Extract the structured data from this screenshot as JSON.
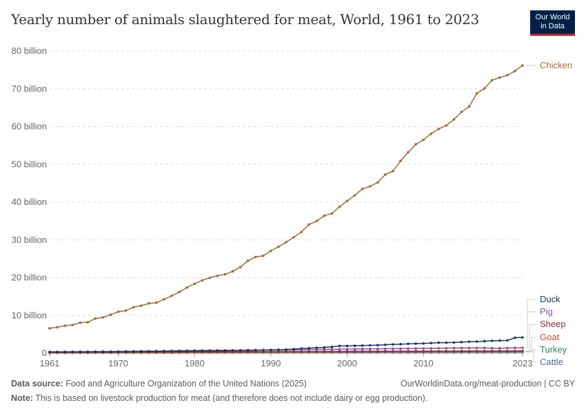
{
  "title": "Yearly number of animals slaughtered for meat, World, 1961 to 2023",
  "logo": {
    "line1": "Our World",
    "line2": "in Data"
  },
  "footer": {
    "source_label": "Data source:",
    "source_text": "Food and Agriculture Organization of the United Nations (2025)",
    "url": "OurWorldinData.org/meat-production | CC BY",
    "note_label": "Note:",
    "note_text": "This is based on livestock production for meat (and therefore does not include dairy or egg production)."
  },
  "chart_data": {
    "type": "line",
    "title": "Yearly number of animals slaughtered for meat, World, 1961 to 2023",
    "x_start": 1961,
    "x_end": 2023,
    "xlim": [
      1961,
      2023
    ],
    "ylim": [
      0,
      80000000000
    ],
    "unit": "billion",
    "grid": "horizontal dashed",
    "legend": "right (line-end labels)",
    "x_ticks": [
      "1961",
      "1970",
      "1980",
      "1990",
      "2000",
      "2010",
      "2023"
    ],
    "y_ticks": [
      "0",
      "10 billion",
      "20 billion",
      "30 billion",
      "40 billion",
      "50 billion",
      "60 billion",
      "70 billion",
      "80 billion"
    ],
    "series": [
      {
        "name": "Chicken",
        "color": "#996d39",
        "values_billion": [
          6.6,
          6.9,
          7.3,
          7.5,
          8.1,
          8.2,
          9.2,
          9.5,
          10.2,
          11.0,
          11.3,
          12.2,
          12.6,
          13.2,
          13.4,
          14.3,
          15.2,
          16.2,
          17.4,
          18.4,
          19.3,
          20.0,
          20.5,
          20.9,
          21.7,
          22.8,
          24.5,
          25.5,
          25.8,
          27.1,
          28.2,
          29.4,
          30.7,
          32.1,
          34.1,
          35.0,
          36.4,
          37.0,
          38.8,
          40.3,
          41.8,
          43.5,
          44.2,
          45.2,
          47.3,
          48.2,
          50.9,
          53.2,
          55.3,
          56.5,
          58.1,
          59.4,
          60.3,
          61.9,
          63.9,
          65.3,
          68.8,
          70.1,
          72.3,
          73.0,
          73.6,
          74.7,
          76.2
        ]
      },
      {
        "name": "Duck",
        "color": "#18375f",
        "values_billion": [
          0.33,
          0.34,
          0.35,
          0.36,
          0.37,
          0.38,
          0.39,
          0.4,
          0.41,
          0.42,
          0.44,
          0.46,
          0.48,
          0.5,
          0.52,
          0.54,
          0.56,
          0.58,
          0.6,
          0.62,
          0.64,
          0.66,
          0.68,
          0.7,
          0.72,
          0.75,
          0.78,
          0.81,
          0.84,
          0.88,
          0.92,
          1.0,
          1.1,
          1.25,
          1.35,
          1.45,
          1.55,
          1.7,
          1.95,
          1.95,
          2.0,
          2.05,
          2.1,
          2.15,
          2.25,
          2.35,
          2.4,
          2.5,
          2.55,
          2.6,
          2.7,
          2.8,
          2.8,
          2.85,
          2.95,
          3.05,
          3.1,
          3.2,
          3.3,
          3.35,
          3.4,
          4.1,
          4.2
        ]
      },
      {
        "name": "Pig",
        "color": "#8c4fa9",
        "values_billion": [
          0.38,
          0.39,
          0.4,
          0.41,
          0.42,
          0.43,
          0.45,
          0.46,
          0.48,
          0.5,
          0.52,
          0.55,
          0.57,
          0.58,
          0.6,
          0.62,
          0.65,
          0.68,
          0.71,
          0.74,
          0.75,
          0.76,
          0.77,
          0.79,
          0.8,
          0.82,
          0.84,
          0.86,
          0.87,
          0.88,
          0.89,
          0.9,
          0.93,
          0.96,
          0.99,
          1.0,
          1.02,
          1.05,
          1.08,
          1.1,
          1.12,
          1.14,
          1.16,
          1.18,
          1.2,
          1.22,
          1.23,
          1.26,
          1.28,
          1.3,
          1.32,
          1.35,
          1.37,
          1.39,
          1.4,
          1.42,
          1.42,
          1.43,
          1.35,
          1.33,
          1.4,
          1.44,
          1.46
        ]
      },
      {
        "name": "Sheep",
        "color": "#883039",
        "values_billion": [
          0.33,
          0.33,
          0.34,
          0.34,
          0.35,
          0.35,
          0.36,
          0.36,
          0.37,
          0.37,
          0.38,
          0.38,
          0.38,
          0.39,
          0.39,
          0.39,
          0.4,
          0.4,
          0.41,
          0.41,
          0.42,
          0.42,
          0.43,
          0.43,
          0.44,
          0.44,
          0.45,
          0.45,
          0.46,
          0.46,
          0.47,
          0.47,
          0.48,
          0.48,
          0.49,
          0.49,
          0.5,
          0.5,
          0.51,
          0.51,
          0.52,
          0.52,
          0.53,
          0.53,
          0.54,
          0.54,
          0.55,
          0.55,
          0.56,
          0.56,
          0.57,
          0.57,
          0.58,
          0.58,
          0.59,
          0.59,
          0.6,
          0.6,
          0.61,
          0.61,
          0.61,
          0.62,
          0.62
        ]
      },
      {
        "name": "Goat",
        "color": "#c15029",
        "values_billion": [
          0.14,
          0.15,
          0.15,
          0.16,
          0.16,
          0.17,
          0.17,
          0.18,
          0.18,
          0.19,
          0.19,
          0.2,
          0.2,
          0.21,
          0.21,
          0.22,
          0.22,
          0.23,
          0.23,
          0.24,
          0.24,
          0.25,
          0.25,
          0.26,
          0.27,
          0.28,
          0.28,
          0.29,
          0.3,
          0.31,
          0.32,
          0.32,
          0.33,
          0.34,
          0.35,
          0.35,
          0.36,
          0.37,
          0.37,
          0.38,
          0.38,
          0.39,
          0.39,
          0.4,
          0.4,
          0.41,
          0.41,
          0.42,
          0.42,
          0.43,
          0.43,
          0.44,
          0.44,
          0.45,
          0.45,
          0.46,
          0.46,
          0.47,
          0.48,
          0.49,
          0.5,
          0.51,
          0.52
        ]
      },
      {
        "name": "Turkey",
        "color": "#2c8465",
        "values_billion": [
          0.09,
          0.1,
          0.1,
          0.11,
          0.11,
          0.12,
          0.12,
          0.13,
          0.13,
          0.14,
          0.14,
          0.15,
          0.15,
          0.16,
          0.16,
          0.17,
          0.17,
          0.18,
          0.18,
          0.19,
          0.19,
          0.2,
          0.2,
          0.21,
          0.21,
          0.22,
          0.23,
          0.24,
          0.25,
          0.26,
          0.27,
          0.28,
          0.29,
          0.3,
          0.31,
          0.32,
          0.33,
          0.34,
          0.35,
          0.36,
          0.36,
          0.37,
          0.37,
          0.38,
          0.38,
          0.39,
          0.39,
          0.4,
          0.4,
          0.41,
          0.41,
          0.42,
          0.42,
          0.42,
          0.43,
          0.43,
          0.43,
          0.44,
          0.44,
          0.44,
          0.44,
          0.45,
          0.45
        ]
      },
      {
        "name": "Cattle",
        "color": "#4c6a9c",
        "values_billion": [
          0.17,
          0.17,
          0.17,
          0.18,
          0.18,
          0.18,
          0.18,
          0.19,
          0.19,
          0.19,
          0.19,
          0.2,
          0.2,
          0.2,
          0.21,
          0.21,
          0.21,
          0.21,
          0.22,
          0.22,
          0.22,
          0.22,
          0.22,
          0.23,
          0.23,
          0.23,
          0.23,
          0.23,
          0.24,
          0.24,
          0.24,
          0.24,
          0.24,
          0.25,
          0.25,
          0.25,
          0.25,
          0.25,
          0.26,
          0.26,
          0.26,
          0.26,
          0.26,
          0.27,
          0.27,
          0.27,
          0.27,
          0.27,
          0.28,
          0.28,
          0.28,
          0.28,
          0.28,
          0.29,
          0.29,
          0.29,
          0.29,
          0.3,
          0.3,
          0.3,
          0.3,
          0.31,
          0.31
        ]
      }
    ]
  }
}
